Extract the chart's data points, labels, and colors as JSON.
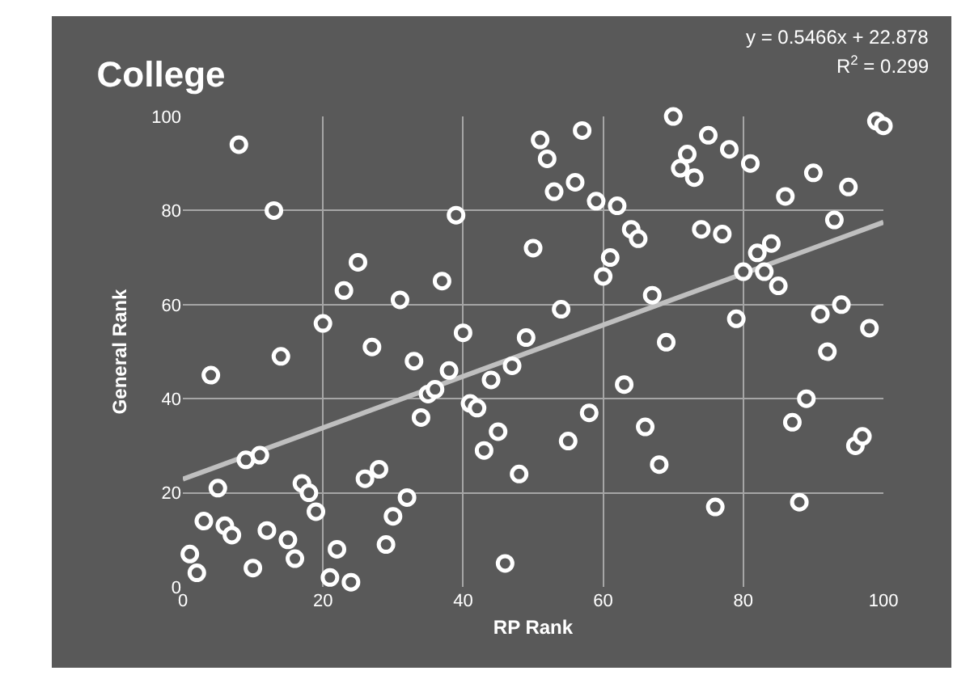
{
  "chart_data": {
    "type": "scatter",
    "title": "College",
    "xlabel": "RP Rank",
    "ylabel": "General Rank",
    "annotations": [
      "y = 0.5466x + 22.878",
      "R$^{2}$ = 0.299"
    ],
    "x": [
      1,
      2,
      3,
      4,
      5,
      6,
      7,
      8,
      9,
      10,
      11,
      12,
      13,
      14,
      15,
      16,
      17,
      18,
      19,
      20,
      21,
      22,
      23,
      24,
      25,
      26,
      27,
      28,
      29,
      30,
      31,
      32,
      33,
      34,
      35,
      36,
      37,
      38,
      39,
      40,
      41,
      42,
      43,
      44,
      45,
      46,
      47,
      48,
      49,
      50,
      51,
      52,
      53,
      54,
      55,
      56,
      57,
      58,
      59,
      60,
      61,
      62,
      63,
      64,
      65,
      66,
      67,
      68,
      69,
      70,
      71,
      72,
      73,
      74,
      75,
      76,
      77,
      78,
      79,
      80,
      81,
      82,
      83,
      84,
      85,
      86,
      87,
      88,
      89,
      90,
      91,
      92,
      93,
      94,
      95,
      96,
      97,
      98,
      99,
      100
    ],
    "series": [
      {
        "color": "#ffffff",
        "marker": "circle",
        "values": [
          7,
          3,
          14,
          45,
          21,
          13,
          11,
          94,
          27,
          4,
          28,
          12,
          80,
          49,
          10,
          6,
          22,
          20,
          16,
          56,
          2,
          8,
          63,
          1,
          69,
          23,
          51,
          25,
          9,
          15,
          61,
          19,
          48,
          36,
          41,
          42,
          65,
          46,
          79,
          54,
          39,
          38,
          29,
          44,
          33,
          5,
          47,
          24,
          53,
          72,
          95,
          91,
          84,
          59,
          31,
          86,
          97,
          37,
          82,
          66,
          70,
          81,
          43,
          76,
          74,
          34,
          62,
          26,
          52,
          100,
          89,
          92,
          87,
          76,
          96,
          17,
          75,
          93,
          57,
          67,
          90,
          71,
          67,
          73,
          64,
          83,
          35,
          18,
          40,
          88,
          58,
          50,
          78,
          60,
          85,
          30,
          32,
          55,
          99,
          98
        ]
      },
      {
        "type": "line",
        "color": "#bfbfbf",
        "line_style": "solid",
        "x": [
          0,
          100
        ],
        "values": [
          22.9,
          77.5
        ]
      }
    ],
    "xlim": [
      0,
      100
    ],
    "xticks": [
      0,
      20,
      40,
      60,
      80,
      100
    ],
    "ylim": [
      0,
      100
    ],
    "yticks": [
      0,
      20,
      40,
      60,
      80,
      100
    ],
    "grid": true
  }
}
